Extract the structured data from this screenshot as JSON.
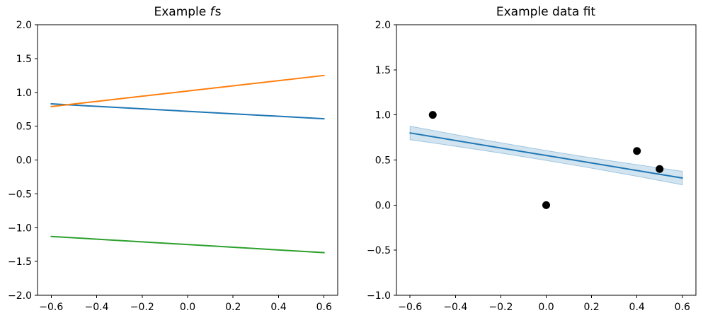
{
  "figure": {
    "background": "#ffffff",
    "text_color": "#000000",
    "spine_color": "#000000"
  },
  "chart_data": [
    {
      "type": "line",
      "title_prefix": "Example ",
      "title_italic": "f",
      "title_suffix": "s",
      "title_full": "Example fs",
      "xlabel": "",
      "ylabel": "",
      "grid": false,
      "legend": null,
      "xlim": [
        -0.66,
        0.66
      ],
      "ylim": [
        -2.0,
        2.0
      ],
      "xticks": {
        "values": [
          -0.6,
          -0.4,
          -0.2,
          0.0,
          0.2,
          0.4,
          0.6
        ],
        "labels": [
          "−0.6",
          "−0.4",
          "−0.2",
          "0.0",
          "0.2",
          "0.4",
          "0.6"
        ]
      },
      "yticks": {
        "values": [
          2.0,
          1.5,
          1.0,
          0.5,
          0.0,
          -0.5,
          -1.0,
          -1.5,
          -2.0
        ],
        "labels": [
          "2.0",
          "1.5",
          "1.0",
          "0.5",
          "0.0",
          "−0.5",
          "−1.0",
          "−1.5",
          "−2.0"
        ]
      },
      "series": [
        {
          "name": "f-sample-blue",
          "color": "#1f77b4",
          "x": [
            -0.6,
            0.6
          ],
          "y": [
            0.83,
            0.61
          ]
        },
        {
          "name": "f-sample-orange",
          "color": "#ff7f0e",
          "x": [
            -0.6,
            0.6
          ],
          "y": [
            0.79,
            1.25
          ]
        },
        {
          "name": "f-sample-green",
          "color": "#2ca02c",
          "x": [
            -0.6,
            0.6
          ],
          "y": [
            -1.13,
            -1.37
          ]
        }
      ]
    },
    {
      "type": "scatter",
      "title_prefix": "Example data fit",
      "title_italic": "",
      "title_suffix": "",
      "title_full": "Example data fit",
      "xlabel": "",
      "ylabel": "",
      "grid": false,
      "legend": null,
      "xlim": [
        -0.66,
        0.66
      ],
      "ylim": [
        -1.0,
        2.0
      ],
      "xticks": {
        "values": [
          -0.6,
          -0.4,
          -0.2,
          0.0,
          0.2,
          0.4,
          0.6
        ],
        "labels": [
          "−0.6",
          "−0.4",
          "−0.2",
          "0.0",
          "0.2",
          "0.4",
          "0.6"
        ]
      },
      "yticks": {
        "values": [
          2.0,
          1.5,
          1.0,
          0.5,
          0.0,
          -0.5,
          -1.0
        ],
        "labels": [
          "2.0",
          "1.5",
          "1.0",
          "0.5",
          "0.0",
          "−0.5",
          "−1.0"
        ]
      },
      "scatter": {
        "name": "observed-data-points",
        "color": "#000000",
        "marker": "circle",
        "marker_radius_px": 5.5,
        "points": [
          [
            -0.5,
            1.0
          ],
          [
            0.0,
            0.0
          ],
          [
            0.4,
            0.6
          ],
          [
            0.5,
            0.4
          ]
        ]
      },
      "fit_line": {
        "name": "fit-line",
        "color": "#1f77b4",
        "x": [
          -0.6,
          0.6
        ],
        "y": [
          0.8,
          0.3
        ]
      },
      "band": {
        "name": "confidence-band",
        "fill": "rgba(31,119,180,0.2)",
        "edge": "rgba(31,119,180,0.35)",
        "x": [
          -0.6,
          -0.45,
          -0.3,
          -0.15,
          0.0,
          0.15,
          0.3,
          0.45,
          0.6
        ],
        "upper": [
          0.875,
          0.805,
          0.735,
          0.669,
          0.605,
          0.544,
          0.485,
          0.43,
          0.375
        ],
        "lower": [
          0.725,
          0.671,
          0.615,
          0.557,
          0.495,
          0.431,
          0.365,
          0.296,
          0.225
        ]
      }
    }
  ]
}
